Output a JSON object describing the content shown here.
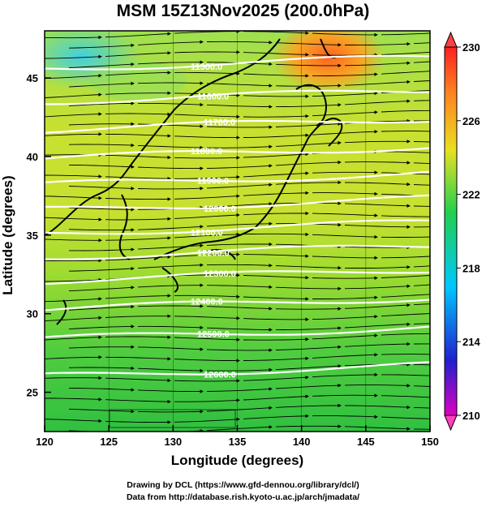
{
  "title": "MSM 15Z13Nov2025 (200.0hPa)",
  "xlabel": "Longitude (degrees)",
  "ylabel": "Latitude  (degrees)",
  "credits": [
    "Drawing by DCL (https://www.gfd-dennou.org/library/dcl/)",
    "Data from http://database.rish.kyoto-u.ac.jp/arch/jmadata/"
  ],
  "chart_data": {
    "type": "heatmap",
    "xlim": [
      120,
      150
    ],
    "ylim": [
      22.5,
      48
    ],
    "x_ticks": [
      120,
      125,
      130,
      135,
      140,
      145,
      150
    ],
    "y_ticks": [
      25,
      30,
      35,
      40,
      45
    ],
    "colorbar": {
      "ticks": [
        210,
        214,
        218,
        222,
        226,
        230
      ],
      "range": [
        210,
        230
      ],
      "colors": [
        "#e000c0",
        "#3030e0",
        "#00c8ff",
        "#20d050",
        "#e8e020",
        "#ff7020",
        "#ff2020"
      ]
    },
    "contours": [
      {
        "label": "11500.0",
        "lat": 45.6
      },
      {
        "label": "11600.0",
        "lat": 43.5
      },
      {
        "label": "11700.0",
        "lat": 41.7
      },
      {
        "label": "11800.0",
        "lat": 39.9
      },
      {
        "label": "11900.0",
        "lat": 38.2
      },
      {
        "label": "12000.0",
        "lat": 36.6
      },
      {
        "label": "12100.0",
        "lat": 35.1
      },
      {
        "label": "12200.0",
        "lat": 33.6
      },
      {
        "label": "12300.0",
        "lat": 32.1
      },
      {
        "label": "12400.0",
        "lat": 30.3
      },
      {
        "label": "12500.0",
        "lat": 28.4
      },
      {
        "label": "12600.0",
        "lat": 26.0
      }
    ],
    "wind": "westerly streamlines"
  }
}
